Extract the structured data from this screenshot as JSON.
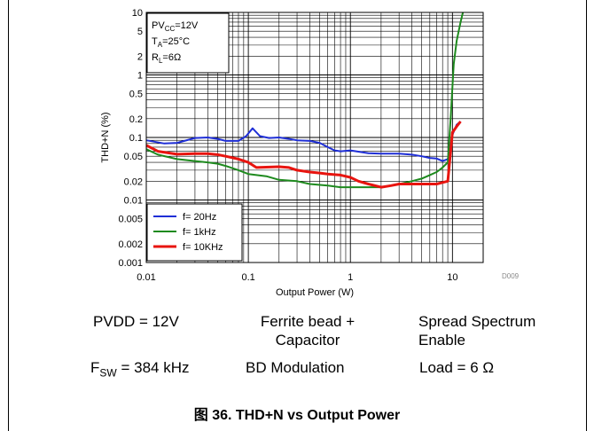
{
  "chart_data": {
    "type": "line",
    "x_scale": "log",
    "y_scale": "log",
    "xlim": [
      0.01,
      20
    ],
    "ylim": [
      0.001,
      10
    ],
    "xlabel": "Output Power (W)",
    "ylabel": "THD+N (%)",
    "x_ticks": [
      "0.01",
      "0.1",
      "1",
      "10"
    ],
    "y_ticks": [
      "10",
      "5",
      "2",
      "1",
      "0.5",
      "0.2",
      "0.1",
      "0.05",
      "0.02",
      "0.01",
      "0.005",
      "0.002",
      "0.001"
    ],
    "grid": true,
    "legend_position": "bottom-left",
    "doc_id": "D009",
    "conditions": {
      "pvcc_main": "PV",
      "pvcc_sub": "CC",
      "pvcc_val": "=12V",
      "ta_main": "T",
      "ta_sub": "A",
      "ta_val": "=25°C",
      "rl_main": "R",
      "rl_sub": "L",
      "rl_val": "=6Ω"
    },
    "series": [
      {
        "name": "f= 20Hz",
        "color": "#1f2fd6",
        "points": [
          [
            0.01,
            0.09
          ],
          [
            0.015,
            0.08
          ],
          [
            0.02,
            0.082
          ],
          [
            0.03,
            0.098
          ],
          [
            0.04,
            0.1
          ],
          [
            0.05,
            0.095
          ],
          [
            0.06,
            0.088
          ],
          [
            0.08,
            0.088
          ],
          [
            0.095,
            0.105
          ],
          [
            0.11,
            0.14
          ],
          [
            0.13,
            0.105
          ],
          [
            0.16,
            0.098
          ],
          [
            0.2,
            0.1
          ],
          [
            0.25,
            0.095
          ],
          [
            0.3,
            0.09
          ],
          [
            0.4,
            0.088
          ],
          [
            0.5,
            0.082
          ],
          [
            0.6,
            0.07
          ],
          [
            0.7,
            0.062
          ],
          [
            0.8,
            0.06
          ],
          [
            1.0,
            0.062
          ],
          [
            1.5,
            0.056
          ],
          [
            2,
            0.055
          ],
          [
            3,
            0.055
          ],
          [
            4,
            0.053
          ],
          [
            5,
            0.05
          ],
          [
            6,
            0.047
          ],
          [
            7,
            0.046
          ],
          [
            8,
            0.042
          ],
          [
            9,
            0.045
          ],
          [
            10,
            0.11
          ],
          [
            11,
            0.16
          ],
          [
            12,
            0.18
          ]
        ]
      },
      {
        "name": "f= 1kHz",
        "color": "#1e8a1e",
        "points": [
          [
            0.01,
            0.065
          ],
          [
            0.013,
            0.053
          ],
          [
            0.02,
            0.045
          ],
          [
            0.03,
            0.042
          ],
          [
            0.04,
            0.04
          ],
          [
            0.05,
            0.038
          ],
          [
            0.06,
            0.035
          ],
          [
            0.08,
            0.03
          ],
          [
            0.1,
            0.026
          ],
          [
            0.15,
            0.024
          ],
          [
            0.2,
            0.021
          ],
          [
            0.3,
            0.02
          ],
          [
            0.4,
            0.018
          ],
          [
            0.6,
            0.017
          ],
          [
            0.8,
            0.016
          ],
          [
            1.0,
            0.016
          ],
          [
            1.5,
            0.016
          ],
          [
            2,
            0.016
          ],
          [
            3,
            0.018
          ],
          [
            4,
            0.02
          ],
          [
            5,
            0.022
          ],
          [
            6,
            0.025
          ],
          [
            7,
            0.028
          ],
          [
            8,
            0.033
          ],
          [
            9,
            0.04
          ],
          [
            9.6,
            0.2
          ],
          [
            10.3,
            1.5
          ],
          [
            11,
            3.5
          ],
          [
            12,
            7
          ],
          [
            13,
            12
          ]
        ]
      },
      {
        "name": "f= 10KHz",
        "color": "#e8140f",
        "points": [
          [
            0.01,
            0.075
          ],
          [
            0.013,
            0.06
          ],
          [
            0.02,
            0.054
          ],
          [
            0.03,
            0.055
          ],
          [
            0.04,
            0.055
          ],
          [
            0.05,
            0.053
          ],
          [
            0.06,
            0.05
          ],
          [
            0.08,
            0.045
          ],
          [
            0.1,
            0.04
          ],
          [
            0.12,
            0.033
          ],
          [
            0.2,
            0.034
          ],
          [
            0.25,
            0.033
          ],
          [
            0.3,
            0.03
          ],
          [
            0.4,
            0.028
          ],
          [
            0.5,
            0.027
          ],
          [
            0.6,
            0.026
          ],
          [
            0.8,
            0.025
          ],
          [
            1.0,
            0.023
          ],
          [
            1.2,
            0.02
          ],
          [
            1.5,
            0.018
          ],
          [
            2,
            0.016
          ],
          [
            2.5,
            0.017
          ],
          [
            3,
            0.018
          ],
          [
            4,
            0.018
          ],
          [
            5,
            0.018
          ],
          [
            6,
            0.018
          ],
          [
            7,
            0.018
          ],
          [
            8,
            0.019
          ],
          [
            9,
            0.02
          ],
          [
            10,
            0.12
          ],
          [
            11,
            0.15
          ],
          [
            12,
            0.18
          ]
        ]
      }
    ]
  },
  "conditions_table": {
    "pvdd": "PVDD = 12V",
    "fsw_main": "F",
    "fsw_sub": "SW",
    "fsw_val": " = 384 kHz",
    "ferrite_line1": "Ferrite bead +",
    "ferrite_line2": "Capacitor",
    "bd_modulation": "BD Modulation",
    "spread_line1": "Spread Spectrum",
    "spread_line2": "Enable",
    "load": "Load = 6 Ω"
  },
  "caption": "图 36. THD+N vs Output Power"
}
